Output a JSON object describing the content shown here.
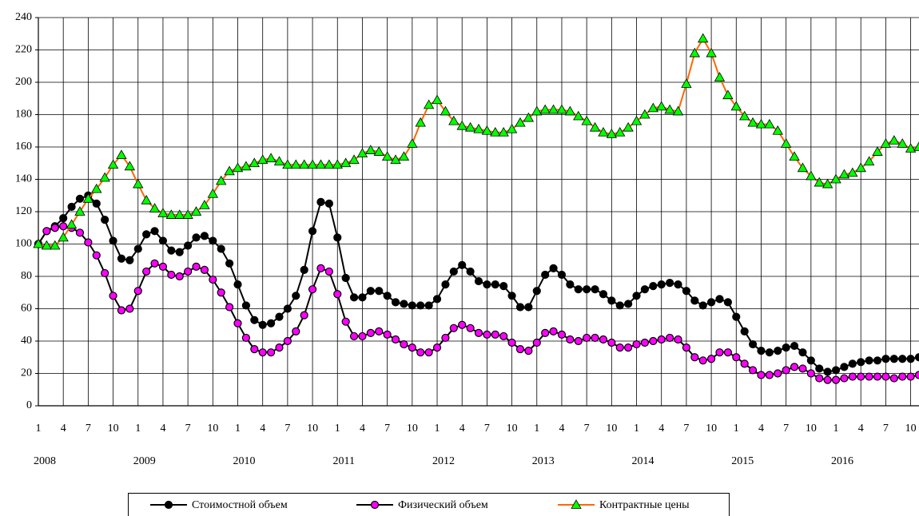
{
  "chart_data": {
    "type": "line",
    "categories": [
      "1",
      null,
      null,
      "4",
      null,
      null,
      "7",
      null,
      null,
      "10",
      null,
      null,
      "1",
      null,
      null,
      "4",
      null,
      null,
      "7",
      null,
      null,
      "10",
      null,
      null,
      "1",
      null,
      null,
      "4",
      null,
      null,
      "7",
      null,
      null,
      "10",
      null,
      null,
      "1",
      null,
      null,
      "4",
      null,
      null,
      "7",
      null,
      null,
      "10",
      null,
      null,
      "1",
      null,
      null,
      "4",
      null,
      null,
      "7",
      null,
      null,
      "10",
      null,
      null,
      "1",
      null,
      null,
      "4",
      null,
      null,
      "7",
      null,
      null,
      "10",
      null,
      null,
      "1",
      null,
      null,
      "4",
      null,
      null,
      "7",
      null,
      null,
      "10",
      null,
      null,
      "1",
      null,
      null,
      "4",
      null,
      null,
      "7",
      null,
      null,
      "10",
      null,
      null,
      "1",
      null,
      null,
      "4",
      null,
      null,
      "7",
      null,
      null,
      "10",
      null
    ],
    "years": [
      "2008",
      "2009",
      "2010",
      "2011",
      "2012",
      "2013",
      "2014",
      "2015",
      "2016"
    ],
    "series": [
      {
        "name": "Стоимостной объем",
        "color": "#000000",
        "marker": "circle",
        "marker_color": "#000000",
        "values": [
          100,
          108,
          111,
          116,
          123,
          128,
          130,
          125,
          115,
          102,
          91,
          90,
          97,
          106,
          108,
          102,
          96,
          95,
          99,
          104,
          105,
          102,
          97,
          88,
          75,
          62,
          53,
          50,
          51,
          55,
          60,
          68,
          84,
          108,
          126,
          125,
          104,
          79,
          67,
          67,
          71,
          71,
          68,
          64,
          63,
          62,
          62,
          62,
          66,
          75,
          83,
          87,
          83,
          77,
          75,
          75,
          74,
          68,
          61,
          61,
          71,
          81,
          85,
          81,
          75,
          72,
          72,
          72,
          69,
          65,
          62,
          63,
          68,
          72,
          74,
          75,
          76,
          75,
          71,
          65,
          62,
          64,
          66,
          64,
          55,
          46,
          38,
          34,
          33,
          34,
          36,
          37,
          33,
          28,
          23,
          21,
          22,
          24,
          26,
          27,
          28,
          28,
          29,
          29,
          29,
          29,
          30
        ]
      },
      {
        "name": "Физический объем",
        "color": "#000000",
        "marker": "circle",
        "marker_color": "#ff00ff",
        "values": [
          100,
          108,
          110,
          111,
          110,
          107,
          101,
          93,
          82,
          68,
          59,
          60,
          71,
          83,
          88,
          86,
          81,
          80,
          83,
          86,
          84,
          78,
          70,
          61,
          51,
          42,
          35,
          33,
          33,
          36,
          40,
          46,
          56,
          72,
          85,
          83,
          69,
          52,
          43,
          43,
          45,
          46,
          44,
          41,
          38,
          36,
          33,
          33,
          36,
          42,
          48,
          50,
          48,
          45,
          44,
          44,
          43,
          39,
          35,
          34,
          39,
          45,
          46,
          44,
          41,
          40,
          42,
          42,
          41,
          39,
          36,
          36,
          38,
          39,
          40,
          41,
          42,
          41,
          36,
          30,
          28,
          29,
          33,
          33,
          30,
          26,
          22,
          19,
          19,
          20,
          22,
          24,
          23,
          20,
          17,
          16,
          16,
          17,
          18,
          18,
          18,
          18,
          18,
          17,
          18,
          18,
          19
        ]
      },
      {
        "name": "Контрактные цены",
        "color": "#ff6600",
        "marker": "triangle",
        "marker_color": "#00ff00",
        "values": [
          100,
          99,
          99,
          104,
          112,
          120,
          128,
          134,
          141,
          149,
          155,
          148,
          137,
          127,
          122,
          119,
          118,
          118,
          118,
          120,
          124,
          131,
          139,
          145,
          147,
          148,
          150,
          152,
          153,
          151,
          149,
          149,
          149,
          149,
          149,
          149,
          149,
          150,
          152,
          156,
          158,
          157,
          154,
          152,
          154,
          162,
          175,
          186,
          189,
          182,
          176,
          173,
          172,
          171,
          170,
          169,
          169,
          171,
          175,
          178,
          182,
          183,
          183,
          183,
          182,
          179,
          176,
          172,
          169,
          168,
          169,
          172,
          176,
          180,
          184,
          185,
          183,
          182,
          199,
          218,
          227,
          218,
          203,
          192,
          185,
          179,
          175,
          174,
          174,
          170,
          162,
          154,
          147,
          142,
          138,
          137,
          140,
          143,
          144,
          147,
          151,
          157,
          162,
          164,
          162,
          159,
          160
        ]
      }
    ],
    "ylim": [
      0,
      240
    ],
    "yticks": [
      0,
      20,
      40,
      60,
      80,
      100,
      120,
      140,
      160,
      180,
      200,
      220,
      240
    ],
    "grid": true,
    "legend": "bottom"
  }
}
